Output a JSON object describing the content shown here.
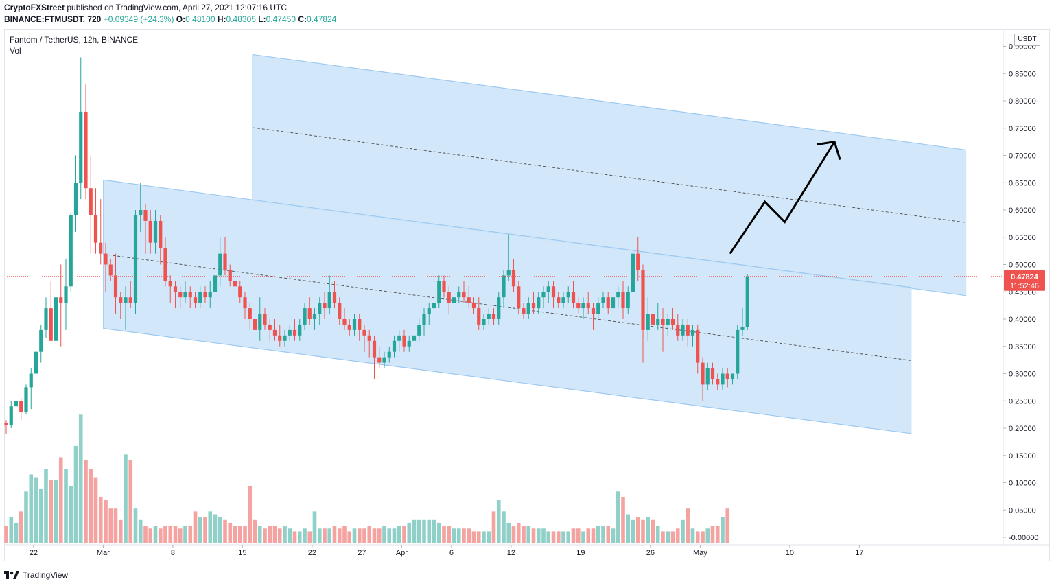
{
  "header": {
    "author": "CryptoFXStreet",
    "published_text": "published on TradingView.com, April 27, 2021 12:07:16 UTC"
  },
  "quote": {
    "symbol": "BINANCE:FTMUSDT, 720",
    "change": "+0.09349 (+24.3%)",
    "open_label": "O:",
    "open": "0.48100",
    "high_label": "H:",
    "high": "0.48305",
    "low_label": "L:",
    "low": "0.47450",
    "close_label": "C:",
    "close": "0.47824"
  },
  "legend": {
    "series_title": "Fantom / TetherUS, 12h, BINANCE",
    "volume_label": "Vol"
  },
  "price_axis": {
    "unit": "USDT",
    "current_price": "0.47824",
    "countdown": "11:52:46"
  },
  "footer": {
    "brand": "TradingView"
  },
  "colors": {
    "up": "#26a69a",
    "down": "#ef5350",
    "vol_up": "#8fd0c8",
    "vol_down": "#f4a3a1",
    "channel_fill": "#cde6f9",
    "channel_edge": "#9cc8f0",
    "price_badge": "#ef5350"
  },
  "chart_data": {
    "type": "candlestick",
    "title": "Fantom / TetherUS, 12h, BINANCE",
    "ylabel": "USDT",
    "ylim": [
      0.0,
      0.9
    ],
    "y_ticks": [
      "0.90000",
      "0.85000",
      "0.80000",
      "0.75000",
      "0.70000",
      "0.65000",
      "0.60000",
      "0.55000",
      "0.50000",
      "0.45000",
      "0.40000",
      "0.35000",
      "0.30000",
      "0.25000",
      "0.20000",
      "0.15000",
      "0.10000",
      "0.05000",
      "-0.00000"
    ],
    "x_ticks": [
      {
        "label": "22",
        "bar": 5.5
      },
      {
        "label": "Mar",
        "bar": 19.5
      },
      {
        "label": "8",
        "bar": 33.5
      },
      {
        "label": "15",
        "bar": 47.5
      },
      {
        "label": "22",
        "bar": 61.5
      },
      {
        "label": "27",
        "bar": 71.5
      },
      {
        "label": "Apr",
        "bar": 79.5
      },
      {
        "label": "6",
        "bar": 89.5
      },
      {
        "label": "12",
        "bar": 101.5
      },
      {
        "label": "19",
        "bar": 115.5
      },
      {
        "label": "26",
        "bar": 129.5
      },
      {
        "label": "May",
        "bar": 139.5
      },
      {
        "label": "10",
        "bar": 157.5
      },
      {
        "label": "17",
        "bar": 171.5
      }
    ],
    "candles": [
      {
        "o": 0.21,
        "h": 0.215,
        "l": 0.19,
        "c": 0.205
      },
      {
        "o": 0.205,
        "h": 0.25,
        "l": 0.2,
        "c": 0.24
      },
      {
        "o": 0.24,
        "h": 0.265,
        "l": 0.23,
        "c": 0.25
      },
      {
        "o": 0.25,
        "h": 0.255,
        "l": 0.215,
        "c": 0.23
      },
      {
        "o": 0.23,
        "h": 0.28,
        "l": 0.225,
        "c": 0.275
      },
      {
        "o": 0.275,
        "h": 0.31,
        "l": 0.235,
        "c": 0.3
      },
      {
        "o": 0.3,
        "h": 0.35,
        "l": 0.29,
        "c": 0.34
      },
      {
        "o": 0.34,
        "h": 0.39,
        "l": 0.32,
        "c": 0.38
      },
      {
        "o": 0.38,
        "h": 0.44,
        "l": 0.365,
        "c": 0.42
      },
      {
        "o": 0.42,
        "h": 0.47,
        "l": 0.36,
        "c": 0.36
      },
      {
        "o": 0.36,
        "h": 0.44,
        "l": 0.31,
        "c": 0.44
      },
      {
        "o": 0.44,
        "h": 0.5,
        "l": 0.35,
        "c": 0.43
      },
      {
        "o": 0.43,
        "h": 0.51,
        "l": 0.38,
        "c": 0.46
      },
      {
        "o": 0.46,
        "h": 0.595,
        "l": 0.45,
        "c": 0.59
      },
      {
        "o": 0.59,
        "h": 0.7,
        "l": 0.56,
        "c": 0.65
      },
      {
        "o": 0.65,
        "h": 0.88,
        "l": 0.62,
        "c": 0.78
      },
      {
        "o": 0.78,
        "h": 0.83,
        "l": 0.62,
        "c": 0.64
      },
      {
        "o": 0.64,
        "h": 0.7,
        "l": 0.52,
        "c": 0.59
      },
      {
        "o": 0.59,
        "h": 0.64,
        "l": 0.52,
        "c": 0.54
      },
      {
        "o": 0.54,
        "h": 0.62,
        "l": 0.5,
        "c": 0.52
      },
      {
        "o": 0.52,
        "h": 0.54,
        "l": 0.45,
        "c": 0.5
      },
      {
        "o": 0.5,
        "h": 0.51,
        "l": 0.47,
        "c": 0.48
      },
      {
        "o": 0.48,
        "h": 0.52,
        "l": 0.41,
        "c": 0.44
      },
      {
        "o": 0.44,
        "h": 0.45,
        "l": 0.4,
        "c": 0.43
      },
      {
        "o": 0.43,
        "h": 0.46,
        "l": 0.38,
        "c": 0.44
      },
      {
        "o": 0.44,
        "h": 0.47,
        "l": 0.42,
        "c": 0.43
      },
      {
        "o": 0.43,
        "h": 0.6,
        "l": 0.41,
        "c": 0.59
      },
      {
        "o": 0.59,
        "h": 0.65,
        "l": 0.56,
        "c": 0.6
      },
      {
        "o": 0.6,
        "h": 0.61,
        "l": 0.52,
        "c": 0.58
      },
      {
        "o": 0.58,
        "h": 0.6,
        "l": 0.52,
        "c": 0.54
      },
      {
        "o": 0.54,
        "h": 0.6,
        "l": 0.52,
        "c": 0.58
      },
      {
        "o": 0.58,
        "h": 0.59,
        "l": 0.5,
        "c": 0.53
      },
      {
        "o": 0.53,
        "h": 0.55,
        "l": 0.46,
        "c": 0.47
      },
      {
        "o": 0.47,
        "h": 0.48,
        "l": 0.43,
        "c": 0.46
      },
      {
        "o": 0.46,
        "h": 0.47,
        "l": 0.42,
        "c": 0.45
      },
      {
        "o": 0.45,
        "h": 0.46,
        "l": 0.42,
        "c": 0.44
      },
      {
        "o": 0.44,
        "h": 0.47,
        "l": 0.43,
        "c": 0.45
      },
      {
        "o": 0.45,
        "h": 0.46,
        "l": 0.42,
        "c": 0.44
      },
      {
        "o": 0.44,
        "h": 0.45,
        "l": 0.42,
        "c": 0.43
      },
      {
        "o": 0.43,
        "h": 0.46,
        "l": 0.42,
        "c": 0.45
      },
      {
        "o": 0.45,
        "h": 0.46,
        "l": 0.43,
        "c": 0.44
      },
      {
        "o": 0.44,
        "h": 0.47,
        "l": 0.42,
        "c": 0.45
      },
      {
        "o": 0.45,
        "h": 0.52,
        "l": 0.44,
        "c": 0.48
      },
      {
        "o": 0.48,
        "h": 0.55,
        "l": 0.46,
        "c": 0.52
      },
      {
        "o": 0.52,
        "h": 0.55,
        "l": 0.48,
        "c": 0.49
      },
      {
        "o": 0.49,
        "h": 0.5,
        "l": 0.46,
        "c": 0.47
      },
      {
        "o": 0.47,
        "h": 0.48,
        "l": 0.44,
        "c": 0.46
      },
      {
        "o": 0.46,
        "h": 0.47,
        "l": 0.43,
        "c": 0.44
      },
      {
        "o": 0.44,
        "h": 0.45,
        "l": 0.4,
        "c": 0.42
      },
      {
        "o": 0.42,
        "h": 0.43,
        "l": 0.38,
        "c": 0.4
      },
      {
        "o": 0.4,
        "h": 0.42,
        "l": 0.35,
        "c": 0.38
      },
      {
        "o": 0.38,
        "h": 0.44,
        "l": 0.36,
        "c": 0.41
      },
      {
        "o": 0.41,
        "h": 0.42,
        "l": 0.38,
        "c": 0.39
      },
      {
        "o": 0.39,
        "h": 0.4,
        "l": 0.36,
        "c": 0.38
      },
      {
        "o": 0.38,
        "h": 0.4,
        "l": 0.36,
        "c": 0.37
      },
      {
        "o": 0.37,
        "h": 0.39,
        "l": 0.35,
        "c": 0.36
      },
      {
        "o": 0.36,
        "h": 0.38,
        "l": 0.35,
        "c": 0.37
      },
      {
        "o": 0.37,
        "h": 0.39,
        "l": 0.36,
        "c": 0.38
      },
      {
        "o": 0.38,
        "h": 0.4,
        "l": 0.36,
        "c": 0.37
      },
      {
        "o": 0.37,
        "h": 0.4,
        "l": 0.36,
        "c": 0.39
      },
      {
        "o": 0.39,
        "h": 0.43,
        "l": 0.38,
        "c": 0.42
      },
      {
        "o": 0.42,
        "h": 0.44,
        "l": 0.39,
        "c": 0.4
      },
      {
        "o": 0.4,
        "h": 0.42,
        "l": 0.38,
        "c": 0.41
      },
      {
        "o": 0.41,
        "h": 0.44,
        "l": 0.39,
        "c": 0.43
      },
      {
        "o": 0.43,
        "h": 0.45,
        "l": 0.4,
        "c": 0.42
      },
      {
        "o": 0.42,
        "h": 0.48,
        "l": 0.41,
        "c": 0.45
      },
      {
        "o": 0.45,
        "h": 0.47,
        "l": 0.42,
        "c": 0.43
      },
      {
        "o": 0.43,
        "h": 0.44,
        "l": 0.39,
        "c": 0.4
      },
      {
        "o": 0.4,
        "h": 0.42,
        "l": 0.38,
        "c": 0.39
      },
      {
        "o": 0.39,
        "h": 0.4,
        "l": 0.37,
        "c": 0.38
      },
      {
        "o": 0.38,
        "h": 0.41,
        "l": 0.37,
        "c": 0.4
      },
      {
        "o": 0.4,
        "h": 0.41,
        "l": 0.36,
        "c": 0.38
      },
      {
        "o": 0.38,
        "h": 0.39,
        "l": 0.34,
        "c": 0.37
      },
      {
        "o": 0.37,
        "h": 0.38,
        "l": 0.33,
        "c": 0.36
      },
      {
        "o": 0.36,
        "h": 0.37,
        "l": 0.29,
        "c": 0.33
      },
      {
        "o": 0.33,
        "h": 0.35,
        "l": 0.31,
        "c": 0.32
      },
      {
        "o": 0.32,
        "h": 0.34,
        "l": 0.31,
        "c": 0.33
      },
      {
        "o": 0.33,
        "h": 0.35,
        "l": 0.32,
        "c": 0.34
      },
      {
        "o": 0.34,
        "h": 0.37,
        "l": 0.33,
        "c": 0.36
      },
      {
        "o": 0.36,
        "h": 0.38,
        "l": 0.34,
        "c": 0.37
      },
      {
        "o": 0.37,
        "h": 0.38,
        "l": 0.34,
        "c": 0.35
      },
      {
        "o": 0.35,
        "h": 0.37,
        "l": 0.34,
        "c": 0.36
      },
      {
        "o": 0.36,
        "h": 0.38,
        "l": 0.35,
        "c": 0.37
      },
      {
        "o": 0.37,
        "h": 0.4,
        "l": 0.36,
        "c": 0.39
      },
      {
        "o": 0.39,
        "h": 0.42,
        "l": 0.37,
        "c": 0.41
      },
      {
        "o": 0.41,
        "h": 0.43,
        "l": 0.39,
        "c": 0.42
      },
      {
        "o": 0.42,
        "h": 0.44,
        "l": 0.4,
        "c": 0.43
      },
      {
        "o": 0.43,
        "h": 0.48,
        "l": 0.42,
        "c": 0.47
      },
      {
        "o": 0.47,
        "h": 0.48,
        "l": 0.44,
        "c": 0.45
      },
      {
        "o": 0.45,
        "h": 0.46,
        "l": 0.41,
        "c": 0.43
      },
      {
        "o": 0.43,
        "h": 0.45,
        "l": 0.42,
        "c": 0.44
      },
      {
        "o": 0.44,
        "h": 0.46,
        "l": 0.43,
        "c": 0.45
      },
      {
        "o": 0.45,
        "h": 0.47,
        "l": 0.43,
        "c": 0.44
      },
      {
        "o": 0.44,
        "h": 0.46,
        "l": 0.42,
        "c": 0.43
      },
      {
        "o": 0.43,
        "h": 0.44,
        "l": 0.41,
        "c": 0.42
      },
      {
        "o": 0.42,
        "h": 0.44,
        "l": 0.38,
        "c": 0.39
      },
      {
        "o": 0.39,
        "h": 0.41,
        "l": 0.38,
        "c": 0.4
      },
      {
        "o": 0.4,
        "h": 0.42,
        "l": 0.39,
        "c": 0.41
      },
      {
        "o": 0.41,
        "h": 0.42,
        "l": 0.39,
        "c": 0.4
      },
      {
        "o": 0.4,
        "h": 0.45,
        "l": 0.39,
        "c": 0.44
      },
      {
        "o": 0.44,
        "h": 0.49,
        "l": 0.42,
        "c": 0.48
      },
      {
        "o": 0.48,
        "h": 0.555,
        "l": 0.47,
        "c": 0.49
      },
      {
        "o": 0.49,
        "h": 0.51,
        "l": 0.45,
        "c": 0.46
      },
      {
        "o": 0.46,
        "h": 0.47,
        "l": 0.41,
        "c": 0.42
      },
      {
        "o": 0.42,
        "h": 0.43,
        "l": 0.4,
        "c": 0.41
      },
      {
        "o": 0.41,
        "h": 0.44,
        "l": 0.4,
        "c": 0.43
      },
      {
        "o": 0.43,
        "h": 0.45,
        "l": 0.41,
        "c": 0.42
      },
      {
        "o": 0.42,
        "h": 0.45,
        "l": 0.41,
        "c": 0.44
      },
      {
        "o": 0.44,
        "h": 0.46,
        "l": 0.42,
        "c": 0.45
      },
      {
        "o": 0.45,
        "h": 0.47,
        "l": 0.43,
        "c": 0.46
      },
      {
        "o": 0.46,
        "h": 0.47,
        "l": 0.42,
        "c": 0.44
      },
      {
        "o": 0.44,
        "h": 0.45,
        "l": 0.42,
        "c": 0.43
      },
      {
        "o": 0.43,
        "h": 0.45,
        "l": 0.42,
        "c": 0.44
      },
      {
        "o": 0.44,
        "h": 0.46,
        "l": 0.43,
        "c": 0.45
      },
      {
        "o": 0.45,
        "h": 0.47,
        "l": 0.42,
        "c": 0.43
      },
      {
        "o": 0.43,
        "h": 0.44,
        "l": 0.41,
        "c": 0.42
      },
      {
        "o": 0.42,
        "h": 0.44,
        "l": 0.4,
        "c": 0.43
      },
      {
        "o": 0.43,
        "h": 0.45,
        "l": 0.41,
        "c": 0.42
      },
      {
        "o": 0.42,
        "h": 0.43,
        "l": 0.38,
        "c": 0.41
      },
      {
        "o": 0.41,
        "h": 0.44,
        "l": 0.4,
        "c": 0.43
      },
      {
        "o": 0.43,
        "h": 0.45,
        "l": 0.42,
        "c": 0.44
      },
      {
        "o": 0.44,
        "h": 0.45,
        "l": 0.41,
        "c": 0.42
      },
      {
        "o": 0.42,
        "h": 0.45,
        "l": 0.41,
        "c": 0.44
      },
      {
        "o": 0.44,
        "h": 0.46,
        "l": 0.42,
        "c": 0.45
      },
      {
        "o": 0.45,
        "h": 0.47,
        "l": 0.4,
        "c": 0.42
      },
      {
        "o": 0.42,
        "h": 0.46,
        "l": 0.41,
        "c": 0.45
      },
      {
        "o": 0.45,
        "h": 0.58,
        "l": 0.44,
        "c": 0.52
      },
      {
        "o": 0.52,
        "h": 0.55,
        "l": 0.47,
        "c": 0.49
      },
      {
        "o": 0.49,
        "h": 0.5,
        "l": 0.32,
        "c": 0.38
      },
      {
        "o": 0.38,
        "h": 0.44,
        "l": 0.36,
        "c": 0.41
      },
      {
        "o": 0.41,
        "h": 0.43,
        "l": 0.37,
        "c": 0.39
      },
      {
        "o": 0.39,
        "h": 0.43,
        "l": 0.38,
        "c": 0.4
      },
      {
        "o": 0.4,
        "h": 0.42,
        "l": 0.34,
        "c": 0.39
      },
      {
        "o": 0.39,
        "h": 0.41,
        "l": 0.37,
        "c": 0.4
      },
      {
        "o": 0.4,
        "h": 0.42,
        "l": 0.38,
        "c": 0.39
      },
      {
        "o": 0.39,
        "h": 0.41,
        "l": 0.36,
        "c": 0.37
      },
      {
        "o": 0.37,
        "h": 0.4,
        "l": 0.36,
        "c": 0.39
      },
      {
        "o": 0.39,
        "h": 0.4,
        "l": 0.35,
        "c": 0.37
      },
      {
        "o": 0.37,
        "h": 0.39,
        "l": 0.35,
        "c": 0.38
      },
      {
        "o": 0.38,
        "h": 0.39,
        "l": 0.3,
        "c": 0.32
      },
      {
        "o": 0.32,
        "h": 0.33,
        "l": 0.25,
        "c": 0.28
      },
      {
        "o": 0.28,
        "h": 0.32,
        "l": 0.27,
        "c": 0.31
      },
      {
        "o": 0.31,
        "h": 0.32,
        "l": 0.28,
        "c": 0.29
      },
      {
        "o": 0.29,
        "h": 0.3,
        "l": 0.27,
        "c": 0.28
      },
      {
        "o": 0.28,
        "h": 0.31,
        "l": 0.27,
        "c": 0.3
      },
      {
        "o": 0.3,
        "h": 0.31,
        "l": 0.275,
        "c": 0.29
      },
      {
        "o": 0.29,
        "h": 0.3,
        "l": 0.28,
        "c": 0.3
      },
      {
        "o": 0.3,
        "h": 0.39,
        "l": 0.29,
        "c": 0.38
      },
      {
        "o": 0.38,
        "h": 0.42,
        "l": 0.37,
        "c": 0.385
      },
      {
        "o": 0.385,
        "h": 0.483,
        "l": 0.38,
        "c": 0.478
      }
    ],
    "volume": [
      0.03,
      0.045,
      0.035,
      0.055,
      0.09,
      0.12,
      0.115,
      0.095,
      0.13,
      0.11,
      0.11,
      0.15,
      0.13,
      0.1,
      0.17,
      0.225,
      0.145,
      0.13,
      0.115,
      0.08,
      0.075,
      0.06,
      0.06,
      0.04,
      0.155,
      0.145,
      0.06,
      0.04,
      0.03,
      0.025,
      0.03,
      0.025,
      0.03,
      0.03,
      0.03,
      0.025,
      0.03,
      0.03,
      0.055,
      0.045,
      0.045,
      0.055,
      0.05,
      0.045,
      0.04,
      0.035,
      0.03,
      0.03,
      0.03,
      0.1,
      0.04,
      0.03,
      0.025,
      0.03,
      0.03,
      0.025,
      0.03,
      0.025,
      0.02,
      0.02,
      0.025,
      0.02,
      0.055,
      0.025,
      0.025,
      0.025,
      0.03,
      0.025,
      0.03,
      0.02,
      0.025,
      0.025,
      0.025,
      0.03,
      0.025,
      0.025,
      0.03,
      0.025,
      0.025,
      0.03,
      0.03,
      0.035,
      0.04,
      0.04,
      0.04,
      0.04,
      0.04,
      0.035,
      0.03,
      0.03,
      0.025,
      0.025,
      0.025,
      0.025,
      0.02,
      0.02,
      0.02,
      0.02,
      0.055,
      0.075,
      0.055,
      0.035,
      0.03,
      0.035,
      0.03,
      0.03,
      0.025,
      0.025,
      0.025,
      0.02,
      0.02,
      0.02,
      0.02,
      0.02,
      0.025,
      0.025,
      0.02,
      0.025,
      0.025,
      0.03,
      0.03,
      0.03,
      0.025,
      0.09,
      0.08,
      0.05,
      0.04,
      0.045,
      0.04,
      0.045,
      0.04,
      0.03,
      0.02,
      0.02,
      0.02,
      0.025,
      0.04,
      0.06,
      0.025,
      0.02,
      0.02,
      0.025,
      0.03,
      0.03,
      0.045,
      0.06
    ],
    "channel_lower": {
      "x": [
        0,
        0,
        0,
        0
      ],
      "upper_start_price": 0.655,
      "upper_end_price": 0.458,
      "lower_start_price": 0.383,
      "lower_end_price": 0.19,
      "mid_start_price": 0.519,
      "mid_end_price": 0.324,
      "start_bar": 19.5,
      "end_bar": 182
    },
    "channel_upper": {
      "upper_start_price": 0.885,
      "upper_end_price": 0.71,
      "lower_start_price": 0.617,
      "lower_end_price": 0.443,
      "mid_start_price": 0.751,
      "mid_end_price": 0.577,
      "start_bar": 49.5,
      "end_bar": 193
    },
    "projection_path": [
      {
        "bar": 145.5,
        "price": 0.52
      },
      {
        "bar": 152.5,
        "price": 0.615
      },
      {
        "bar": 156.5,
        "price": 0.578
      },
      {
        "bar": 166.5,
        "price": 0.725
      }
    ],
    "current_price": 0.47824
  }
}
